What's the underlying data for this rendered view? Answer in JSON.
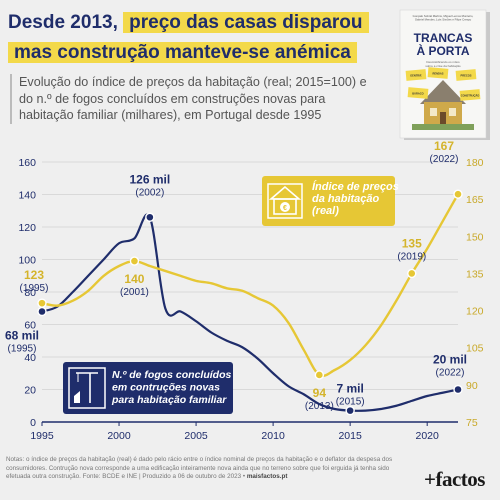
{
  "headline": {
    "line1_plain": "Desde 2013,",
    "line1_highlight": "preço das casas disparou",
    "line2_highlight": "mas construção manteve-se anémica"
  },
  "subtitle": "Evolução do índice de preços da habitação (real; 2015=100) e do n.º de fogos concluídos em construções novas para habitação familiar (milhares), em Portugal desde 1995",
  "book": {
    "authors": "Gonçalo Sobral Martins, Miguel Lemos Monteiro,\nGabriel Mendes, Luís Simões e Filipe Crespo",
    "title_line1": "TRANCAS",
    "title_line2": "À PORTA",
    "tagline": "Desmistificando os mitos\nsobre a crise da habitação",
    "sticky_notes": [
      "GENTRIF.",
      "RENDAS",
      "PRECOS",
      "BURACO",
      "CONSTRUÇÃO"
    ]
  },
  "chart_data": {
    "type": "line",
    "x_ticks": [
      1995,
      2000,
      2005,
      2010,
      2015,
      2020
    ],
    "xlim": [
      1995,
      2022
    ],
    "left_axis": {
      "ylim": [
        0,
        160
      ],
      "ticks": [
        0,
        20,
        40,
        60,
        80,
        100,
        120,
        140,
        160
      ]
    },
    "right_axis": {
      "ylim": [
        75,
        180
      ],
      "ticks": [
        75,
        90,
        105,
        120,
        135,
        150,
        165,
        180
      ]
    },
    "series": [
      {
        "name": "N.º de fogos concluídos em contruções novas para habitação familiar",
        "axis": "left",
        "color": "#1f2d6b",
        "x": [
          1995,
          1996,
          1997,
          1998,
          1999,
          2000,
          2001,
          2002,
          2003,
          2004,
          2005,
          2006,
          2007,
          2008,
          2009,
          2010,
          2011,
          2012,
          2013,
          2014,
          2015,
          2016,
          2017,
          2018,
          2019,
          2020,
          2021,
          2022
        ],
        "values": [
          68,
          71,
          80,
          90,
          100,
          110,
          113,
          126,
          70,
          68,
          62,
          55,
          50,
          46,
          39,
          30,
          22,
          17,
          11,
          8,
          7,
          7,
          8,
          10,
          13,
          16,
          18,
          20
        ]
      },
      {
        "name": "Índice de preços da habitação (real)",
        "axis": "right",
        "color": "#e6c735",
        "x": [
          1995,
          1996,
          1997,
          1998,
          1999,
          2000,
          2001,
          2002,
          2003,
          2004,
          2005,
          2006,
          2007,
          2008,
          2009,
          2010,
          2011,
          2012,
          2013,
          2014,
          2015,
          2016,
          2017,
          2018,
          2019,
          2020,
          2021,
          2022
        ],
        "values": [
          123,
          122,
          124,
          128,
          134,
          138,
          140,
          138,
          136,
          134,
          132,
          131,
          129,
          128,
          125,
          122,
          115,
          104,
          94,
          96,
          100,
          106,
          114,
          124,
          135,
          145,
          156,
          167
        ]
      }
    ],
    "annotations": [
      {
        "series": 0,
        "x": 1995,
        "value": "68 mil",
        "year": "(1995)"
      },
      {
        "series": 0,
        "x": 2002,
        "value": "126 mil",
        "year": "(2002)"
      },
      {
        "series": 0,
        "x": 2015,
        "value": "7 mil",
        "year": "(2015)"
      },
      {
        "series": 0,
        "x": 2022,
        "value": "20 mil",
        "year": "(2022)"
      },
      {
        "series": 1,
        "x": 1995,
        "value": "123",
        "year": "(1995)"
      },
      {
        "series": 1,
        "x": 2001,
        "value": "140",
        "year": "(2001)"
      },
      {
        "series": 1,
        "x": 2013,
        "value": "94",
        "year": "(2013)"
      },
      {
        "series": 1,
        "x": 2019,
        "value": "135",
        "year": "(2019)"
      },
      {
        "series": 1,
        "x": 2022,
        "value": "167",
        "year": "(2022)"
      }
    ],
    "legend": {
      "price_label": [
        "Índice de preços",
        "da habitação",
        "(real)"
      ],
      "construction_label": [
        "N.º de fogos concluídos",
        "em contruções novas",
        "para habitação familiar"
      ]
    }
  },
  "footnote": {
    "text": "Notas: o índice de preços da habitação (real) é dado pelo rácio entre o índice nominal de preços da habitação e o deflator da despesa dos consumidores. Contrução nova corresponde a uma edificação inteiramente nova ainda que no terreno sobre que foi erguida já tenha sido efetuada outra construção. Fonte: BCDE e INE | Produzido a 06 de outubro de 2023 •",
    "site": "maisfactos.pt"
  },
  "brand": "+factos"
}
